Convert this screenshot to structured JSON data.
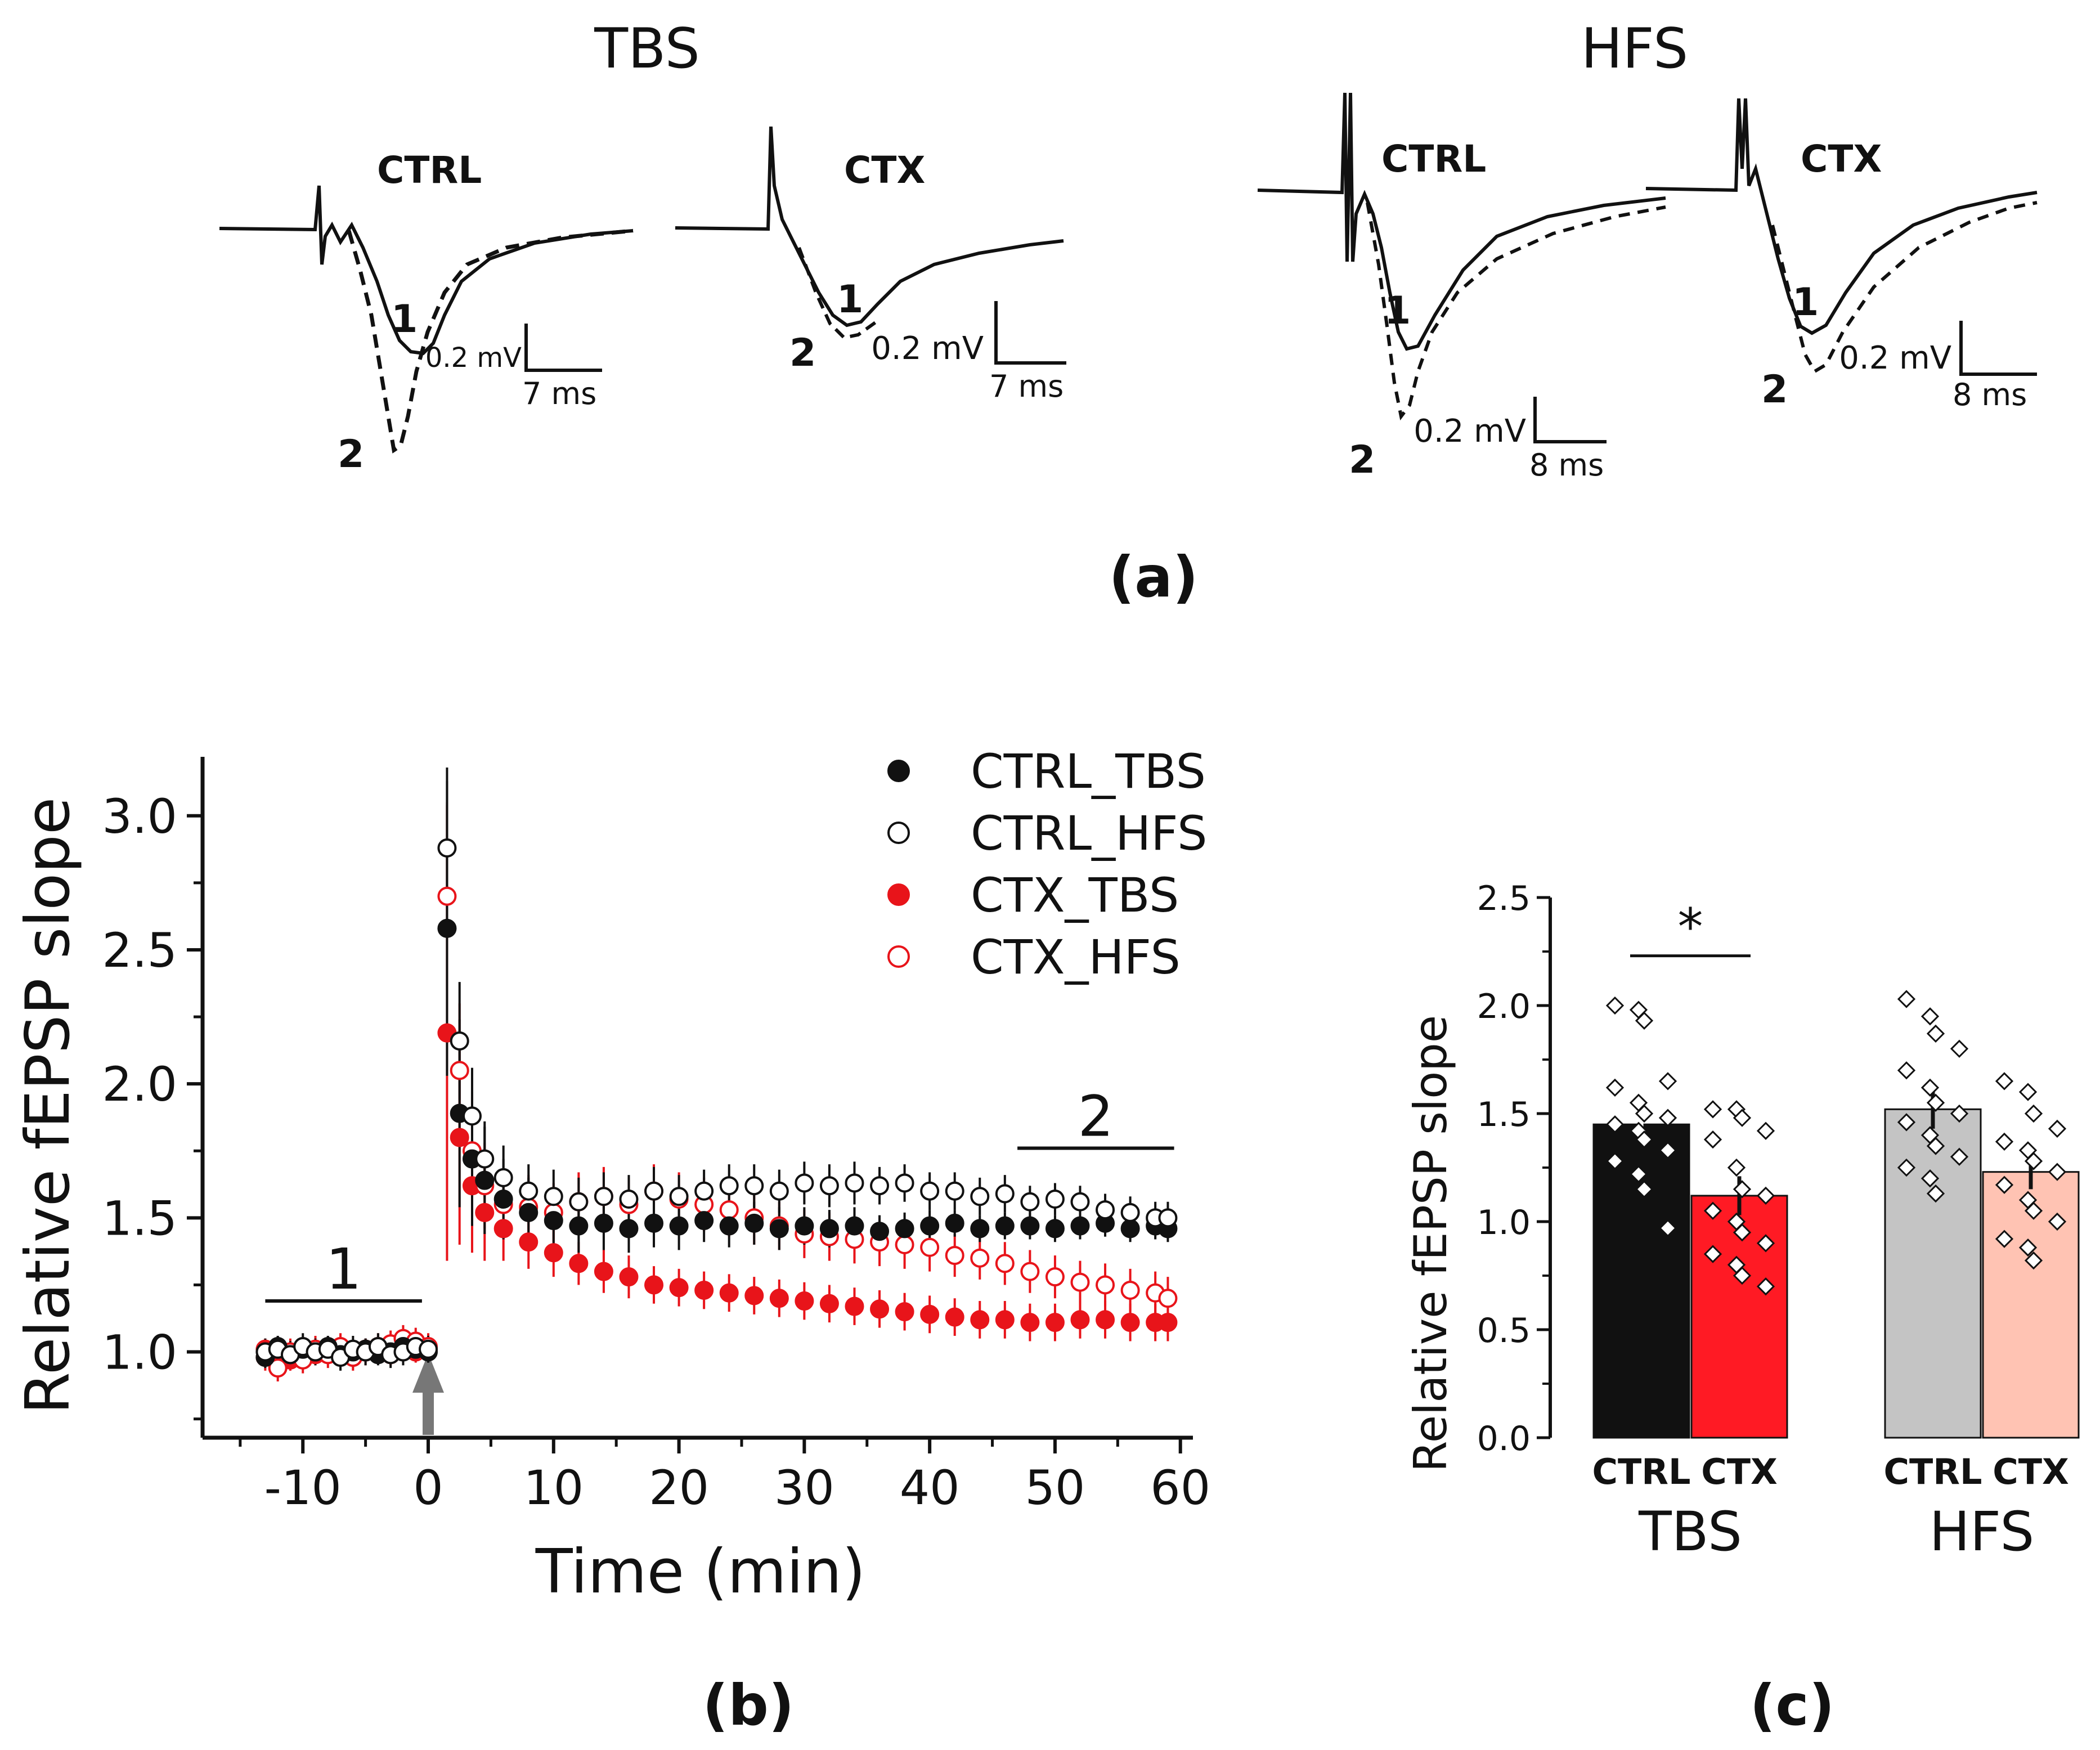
{
  "panel_a": {
    "label": "(a)",
    "groups": [
      {
        "title": "TBS",
        "traces": [
          {
            "name": "CTRL",
            "scale_mv": "0.2 mV",
            "scale_ms": "7 ms",
            "marker1": "1",
            "marker2": "2"
          },
          {
            "name": "CTX",
            "scale_mv": "0.2 mV",
            "scale_ms": "7 ms",
            "marker1": "1",
            "marker2": "2"
          }
        ]
      },
      {
        "title": "HFS",
        "traces": [
          {
            "name": "CTRL",
            "scale_mv": "0.2 mV",
            "scale_ms": "8 ms",
            "marker1": "1",
            "marker2": "2"
          },
          {
            "name": "CTX",
            "scale_mv": "0.2 mV",
            "scale_ms": "8 ms",
            "marker1": "1",
            "marker2": "2"
          }
        ]
      }
    ]
  },
  "chart_data": [
    {
      "panel": "(b)",
      "type": "scatter",
      "xlabel": "Time (min)",
      "ylabel": "Relative fEPSP slope",
      "xlim": [
        -18,
        61
      ],
      "ylim": [
        0.68,
        3.22
      ],
      "xticks": [
        -10,
        0,
        10,
        20,
        30,
        40,
        50,
        60
      ],
      "yticks": [
        1.0,
        1.5,
        2.0,
        2.5,
        3.0
      ],
      "xtick_labels": [
        "-10",
        "0",
        "10",
        "20",
        "30",
        "40",
        "50",
        "60"
      ],
      "ytick_labels": [
        "1.0",
        "1.5",
        "2.0",
        "2.5",
        "3.0"
      ],
      "annotations": [
        {
          "text": "1",
          "x_from": -13,
          "x_to": -0.5,
          "y": 1.19
        },
        {
          "text": "2",
          "x_from": 47,
          "x_to": 59.5,
          "y": 1.76
        }
      ],
      "stimulus_arrow_x": 0,
      "legend_position": "top-right",
      "series": [
        {
          "name": "CTRL_TBS",
          "color": "#111111",
          "filled": true,
          "x": [
            -13,
            -12,
            -11,
            -10,
            -9,
            -8,
            -7,
            -6,
            -5,
            -4,
            -3,
            -2,
            -1,
            0,
            1.5,
            2.5,
            3.5,
            4.5,
            6,
            8,
            10,
            12,
            14,
            16,
            18,
            20,
            22,
            24,
            26,
            28,
            30,
            32,
            34,
            36,
            38,
            40,
            42,
            44,
            46,
            48,
            50,
            52,
            54,
            56,
            58,
            59
          ],
          "y": [
            0.98,
            1.02,
            0.99,
            1.01,
            1.0,
            1.02,
            0.99,
            1.0,
            1.01,
            0.99,
            1.0,
            1.02,
            1.01,
            1.0,
            2.58,
            1.89,
            1.72,
            1.64,
            1.57,
            1.52,
            1.49,
            1.47,
            1.48,
            1.46,
            1.48,
            1.47,
            1.49,
            1.47,
            1.48,
            1.46,
            1.47,
            1.46,
            1.47,
            1.45,
            1.46,
            1.47,
            1.48,
            1.46,
            1.47,
            1.47,
            1.46,
            1.47,
            1.48,
            1.46,
            1.47,
            1.46
          ],
          "err": [
            0.04,
            0.04,
            0.04,
            0.04,
            0.04,
            0.04,
            0.04,
            0.04,
            0.04,
            0.04,
            0.04,
            0.04,
            0.04,
            0.04,
            0.55,
            0.35,
            0.25,
            0.2,
            0.15,
            0.13,
            0.12,
            0.1,
            0.1,
            0.09,
            0.09,
            0.09,
            0.08,
            0.08,
            0.08,
            0.08,
            0.07,
            0.07,
            0.07,
            0.06,
            0.06,
            0.06,
            0.05,
            0.05,
            0.05,
            0.05,
            0.05,
            0.05,
            0.05,
            0.05,
            0.05,
            0.05
          ]
        },
        {
          "name": "CTRL_HFS",
          "color": "#111111",
          "filled": false,
          "x": [
            -13,
            -12,
            -11,
            -10,
            -9,
            -8,
            -7,
            -6,
            -5,
            -4,
            -3,
            -2,
            -1,
            0,
            1.5,
            2.5,
            3.5,
            4.5,
            6,
            8,
            10,
            12,
            14,
            16,
            18,
            20,
            22,
            24,
            26,
            28,
            30,
            32,
            34,
            36,
            38,
            40,
            42,
            44,
            46,
            48,
            50,
            52,
            54,
            56,
            58,
            59
          ],
          "y": [
            1.0,
            1.01,
            0.99,
            1.02,
            1.0,
            1.01,
            0.98,
            1.01,
            1.0,
            1.02,
            0.99,
            1.0,
            1.02,
            1.01,
            2.88,
            2.16,
            1.88,
            1.72,
            1.65,
            1.6,
            1.58,
            1.56,
            1.58,
            1.57,
            1.6,
            1.58,
            1.6,
            1.62,
            1.62,
            1.6,
            1.63,
            1.62,
            1.63,
            1.62,
            1.63,
            1.6,
            1.6,
            1.58,
            1.59,
            1.56,
            1.57,
            1.56,
            1.53,
            1.52,
            1.5,
            1.5
          ],
          "err": [
            0.05,
            0.05,
            0.05,
            0.05,
            0.05,
            0.05,
            0.05,
            0.05,
            0.05,
            0.05,
            0.05,
            0.05,
            0.05,
            0.05,
            0.3,
            0.22,
            0.18,
            0.14,
            0.12,
            0.1,
            0.1,
            0.09,
            0.09,
            0.09,
            0.09,
            0.08,
            0.08,
            0.08,
            0.08,
            0.08,
            0.08,
            0.08,
            0.08,
            0.07,
            0.07,
            0.07,
            0.07,
            0.07,
            0.07,
            0.06,
            0.06,
            0.06,
            0.06,
            0.06,
            0.06,
            0.06
          ]
        },
        {
          "name": "CTX_TBS",
          "color": "#e8141a",
          "filled": true,
          "x": [
            -13,
            -12,
            -11,
            -10,
            -9,
            -8,
            -7,
            -6,
            -5,
            -4,
            -3,
            -2,
            -1,
            0,
            1.5,
            2.5,
            3.5,
            4.5,
            6,
            8,
            10,
            12,
            14,
            16,
            18,
            20,
            22,
            24,
            26,
            28,
            30,
            32,
            34,
            36,
            38,
            40,
            42,
            44,
            46,
            48,
            50,
            52,
            54,
            56,
            58,
            59
          ],
          "y": [
            1.01,
            0.99,
            0.97,
            1.0,
            0.99,
            1.01,
            1.0,
            0.98,
            1.01,
            1.0,
            0.99,
            1.01,
            1.0,
            1.01,
            2.19,
            1.8,
            1.62,
            1.52,
            1.46,
            1.41,
            1.37,
            1.33,
            1.3,
            1.28,
            1.25,
            1.24,
            1.23,
            1.22,
            1.21,
            1.2,
            1.19,
            1.18,
            1.17,
            1.16,
            1.15,
            1.14,
            1.13,
            1.12,
            1.12,
            1.11,
            1.11,
            1.12,
            1.12,
            1.11,
            1.11,
            1.11
          ],
          "err": [
            0.04,
            0.04,
            0.04,
            0.04,
            0.04,
            0.04,
            0.04,
            0.04,
            0.04,
            0.04,
            0.04,
            0.04,
            0.04,
            0.04,
            0.85,
            0.4,
            0.25,
            0.18,
            0.12,
            0.1,
            0.09,
            0.08,
            0.08,
            0.08,
            0.07,
            0.07,
            0.07,
            0.07,
            0.07,
            0.07,
            0.07,
            0.07,
            0.07,
            0.07,
            0.07,
            0.07,
            0.07,
            0.07,
            0.07,
            0.07,
            0.07,
            0.07,
            0.07,
            0.07,
            0.07,
            0.07
          ]
        },
        {
          "name": "CTX_HFS",
          "color": "#e8141a",
          "filled": false,
          "x": [
            -13,
            -12,
            -11,
            -10,
            -9,
            -8,
            -7,
            -6,
            -5,
            -4,
            -3,
            -2,
            -1,
            0,
            1.5,
            2.5,
            3.5,
            4.5,
            6,
            8,
            10,
            12,
            14,
            16,
            18,
            20,
            22,
            24,
            26,
            28,
            30,
            32,
            34,
            36,
            38,
            40,
            42,
            44,
            46,
            48,
            50,
            52,
            54,
            56,
            58,
            59
          ],
          "y": [
            0.98,
            0.94,
            1.0,
            0.97,
            1.01,
            0.99,
            1.02,
            0.98,
            1.0,
            1.02,
            1.03,
            1.05,
            1.04,
            1.02,
            2.7,
            2.05,
            1.75,
            1.62,
            1.55,
            1.54,
            1.52,
            1.56,
            1.58,
            1.55,
            1.6,
            1.57,
            1.55,
            1.53,
            1.5,
            1.47,
            1.44,
            1.43,
            1.42,
            1.41,
            1.4,
            1.39,
            1.36,
            1.35,
            1.33,
            1.3,
            1.28,
            1.26,
            1.25,
            1.23,
            1.22,
            1.2
          ],
          "err": [
            0.05,
            0.05,
            0.05,
            0.05,
            0.05,
            0.05,
            0.05,
            0.05,
            0.05,
            0.05,
            0.05,
            0.05,
            0.05,
            0.05,
            0.35,
            0.25,
            0.2,
            0.16,
            0.13,
            0.12,
            0.11,
            0.11,
            0.11,
            0.1,
            0.1,
            0.1,
            0.1,
            0.1,
            0.1,
            0.09,
            0.09,
            0.09,
            0.09,
            0.09,
            0.09,
            0.09,
            0.08,
            0.08,
            0.08,
            0.08,
            0.08,
            0.08,
            0.08,
            0.08,
            0.08,
            0.08
          ]
        }
      ]
    },
    {
      "panel": "(c)",
      "type": "bar",
      "ylabel": "Relative fEPSP slope",
      "ylim": [
        0,
        2.5
      ],
      "yticks": [
        0.0,
        0.5,
        1.0,
        1.5,
        2.0,
        2.5
      ],
      "ytick_labels": [
        "0.0",
        "0.5",
        "1.0",
        "1.5",
        "2.0",
        "2.5"
      ],
      "groups": [
        "TBS",
        "HFS"
      ],
      "categories": [
        "CTRL",
        "CTX",
        "CTRL",
        "CTX"
      ],
      "values": [
        1.45,
        1.12,
        1.52,
        1.23
      ],
      "err": [
        0.08,
        0.09,
        0.09,
        0.08
      ],
      "colors": [
        "#111111",
        "#ff1a24",
        "#c4c4c4",
        "#ffc3b3"
      ],
      "points": [
        [
          2.0,
          1.98,
          1.93,
          1.65,
          1.62,
          1.55,
          1.5,
          1.48,
          1.45,
          1.42,
          1.38,
          1.33,
          1.28,
          1.22,
          1.15,
          0.97
        ],
        [
          1.52,
          1.52,
          1.48,
          1.42,
          1.38,
          1.25,
          1.15,
          1.12,
          1.05,
          1.0,
          0.95,
          0.9,
          0.85,
          0.8,
          0.75,
          0.7
        ],
        [
          2.03,
          1.95,
          1.87,
          1.8,
          1.7,
          1.62,
          1.55,
          1.5,
          1.46,
          1.4,
          1.35,
          1.3,
          1.25,
          1.2,
          1.13
        ],
        [
          1.65,
          1.6,
          1.5,
          1.43,
          1.37,
          1.33,
          1.28,
          1.23,
          1.17,
          1.1,
          1.05,
          1.0,
          0.92,
          0.88,
          0.82
        ]
      ],
      "significance": {
        "text": "*",
        "between": [
          0,
          1
        ]
      }
    }
  ],
  "panel_labels": {
    "b": "(b)",
    "c": "(c)"
  }
}
